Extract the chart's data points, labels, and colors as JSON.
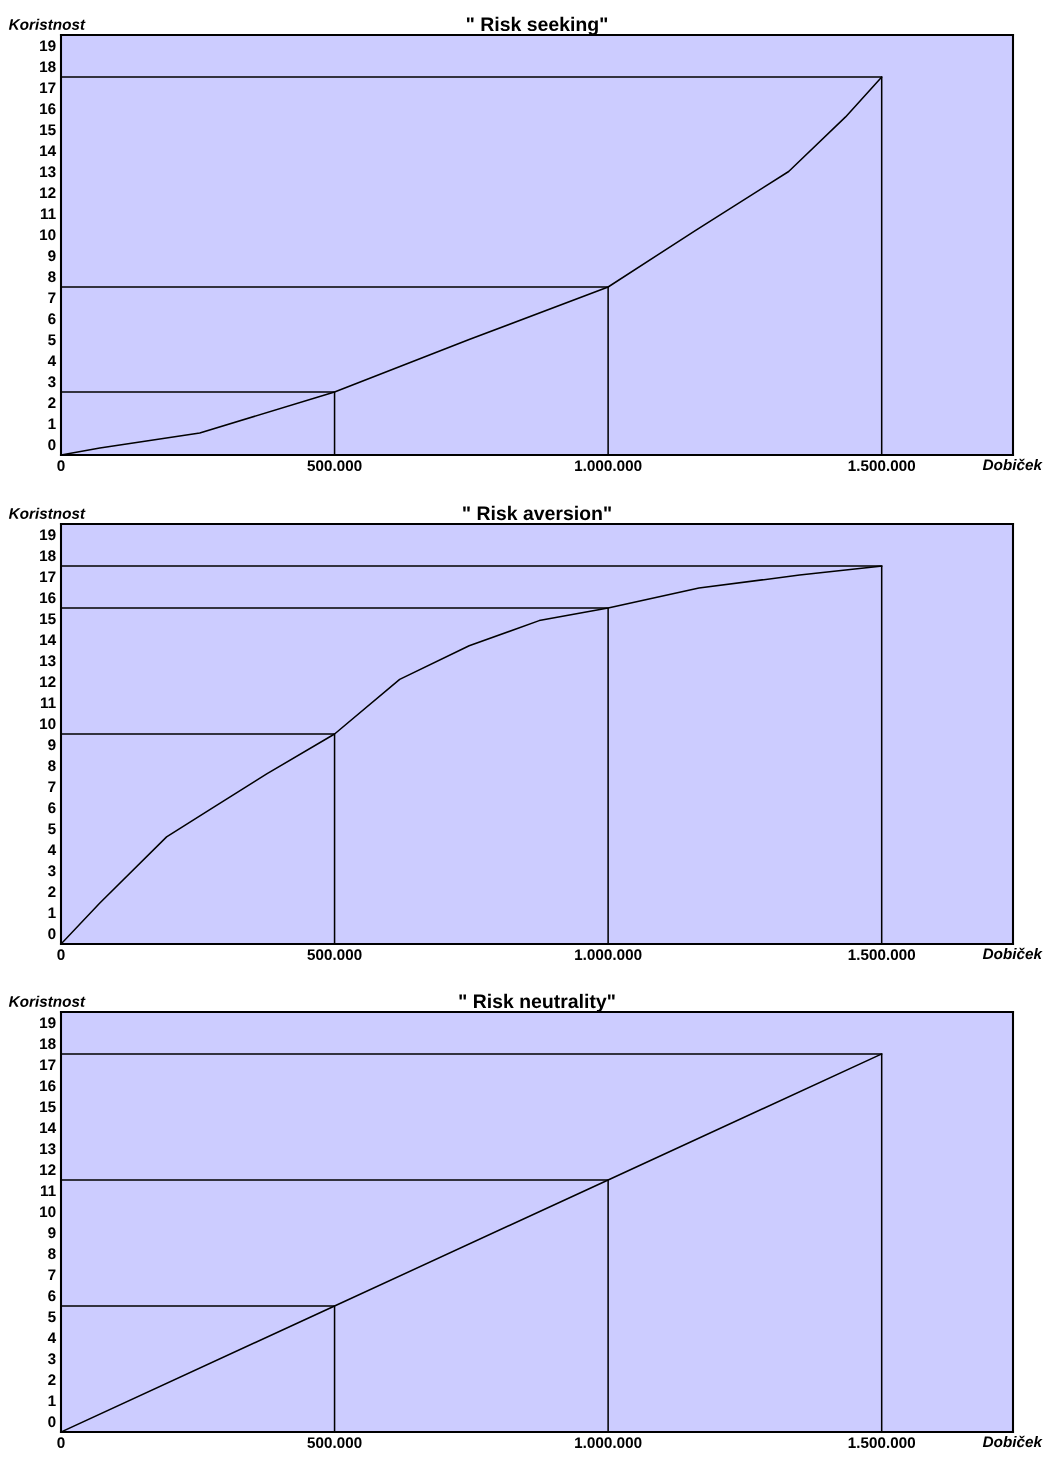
{
  "chart_data": [
    {
      "type": "line",
      "title": "\" Risk seeking\"",
      "xlabel": "Dobiček",
      "ylabel": "Koristnost",
      "xlim": [
        0,
        1740000
      ],
      "xticks": [
        {
          "value": 0,
          "label": "0"
        },
        {
          "value": 500000,
          "label": "500.000"
        },
        {
          "value": 1000000,
          "label": "1.000.000"
        },
        {
          "value": 1500000,
          "label": "1.500.000"
        }
      ],
      "ylim": [
        -0.5,
        19.5
      ],
      "yticks": [
        0,
        1,
        2,
        3,
        4,
        5,
        6,
        7,
        8,
        9,
        10,
        11,
        12,
        13,
        14,
        15,
        16,
        17,
        18,
        19
      ],
      "grid": false,
      "line_style": "solid",
      "marker": "none",
      "series": [
        {
          "color": "#000000",
          "x": [
            0,
            71000,
            253600,
            500000,
            746000,
            1000000,
            1160000,
            1330000,
            1434000,
            1500000
          ],
          "values": [
            -0.5,
            -0.17,
            0.55,
            2.5,
            5.0,
            7.5,
            10.2,
            13.0,
            15.6,
            17.5
          ]
        },
        {
          "color": "#000000",
          "x": [
            0,
            500000,
            500000
          ],
          "values": [
            2.5,
            2.5,
            -0.5
          ]
        },
        {
          "color": "#000000",
          "x": [
            0,
            1000000,
            1000000
          ],
          "values": [
            7.5,
            7.5,
            -0.5
          ]
        },
        {
          "color": "#000000",
          "x": [
            0,
            1500000,
            1500000
          ],
          "values": [
            17.5,
            17.5,
            -0.5
          ]
        }
      ]
    },
    {
      "type": "line",
      "title": "\" Risk aversion\"",
      "xlabel": "Dobiček",
      "ylabel": "Koristnost",
      "xlim": [
        0,
        1740000
      ],
      "xticks": [
        {
          "value": 0,
          "label": "0"
        },
        {
          "value": 500000,
          "label": "500.000"
        },
        {
          "value": 1000000,
          "label": "1.000.000"
        },
        {
          "value": 1500000,
          "label": "1.500.000"
        }
      ],
      "ylim": [
        -0.5,
        19.5
      ],
      "yticks": [
        0,
        1,
        2,
        3,
        4,
        5,
        6,
        7,
        8,
        9,
        10,
        11,
        12,
        13,
        14,
        15,
        16,
        17,
        18,
        19
      ],
      "grid": false,
      "line_style": "solid",
      "marker": "none",
      "series": [
        {
          "color": "#000000",
          "x": [
            0,
            71000,
            193000,
            272000,
            376000,
            500000,
            619000,
            746000,
            874000,
            1000000,
            1166000,
            1350000,
            1500000
          ],
          "values": [
            -0.5,
            1.45,
            4.6,
            5.9,
            7.6,
            9.5,
            12.1,
            13.7,
            14.9,
            15.5,
            16.45,
            17.07,
            17.5
          ]
        },
        {
          "color": "#000000",
          "x": [
            0,
            500000,
            500000
          ],
          "values": [
            9.5,
            9.5,
            -0.5
          ]
        },
        {
          "color": "#000000",
          "x": [
            0,
            1000000,
            1000000
          ],
          "values": [
            15.5,
            15.5,
            -0.5
          ]
        },
        {
          "color": "#000000",
          "x": [
            0,
            1500000,
            1500000
          ],
          "values": [
            17.5,
            17.5,
            -0.5
          ]
        }
      ]
    },
    {
      "type": "line",
      "title": "\" Risk neutrality\"",
      "xlabel": "Dobiček",
      "ylabel": "Koristnost",
      "xlim": [
        0,
        1740000
      ],
      "xticks": [
        {
          "value": 0,
          "label": "0"
        },
        {
          "value": 500000,
          "label": "500.000"
        },
        {
          "value": 1000000,
          "label": "1.000.000"
        },
        {
          "value": 1500000,
          "label": "1.500.000"
        }
      ],
      "ylim": [
        -0.5,
        19.5
      ],
      "yticks": [
        0,
        1,
        2,
        3,
        4,
        5,
        6,
        7,
        8,
        9,
        10,
        11,
        12,
        13,
        14,
        15,
        16,
        17,
        18,
        19
      ],
      "grid": false,
      "line_style": "solid",
      "marker": "none",
      "series": [
        {
          "color": "#000000",
          "x": [
            0,
            500000,
            1000000,
            1500000
          ],
          "values": [
            -0.5,
            5.5,
            11.5,
            17.5
          ]
        },
        {
          "color": "#000000",
          "x": [
            0,
            500000,
            500000
          ],
          "values": [
            5.5,
            5.5,
            -0.5
          ]
        },
        {
          "color": "#000000",
          "x": [
            0,
            1000000,
            1000000
          ],
          "values": [
            11.5,
            11.5,
            -0.5
          ]
        },
        {
          "color": "#000000",
          "x": [
            0,
            1500000,
            1500000
          ],
          "values": [
            17.5,
            17.5,
            -0.5
          ]
        }
      ]
    }
  ]
}
